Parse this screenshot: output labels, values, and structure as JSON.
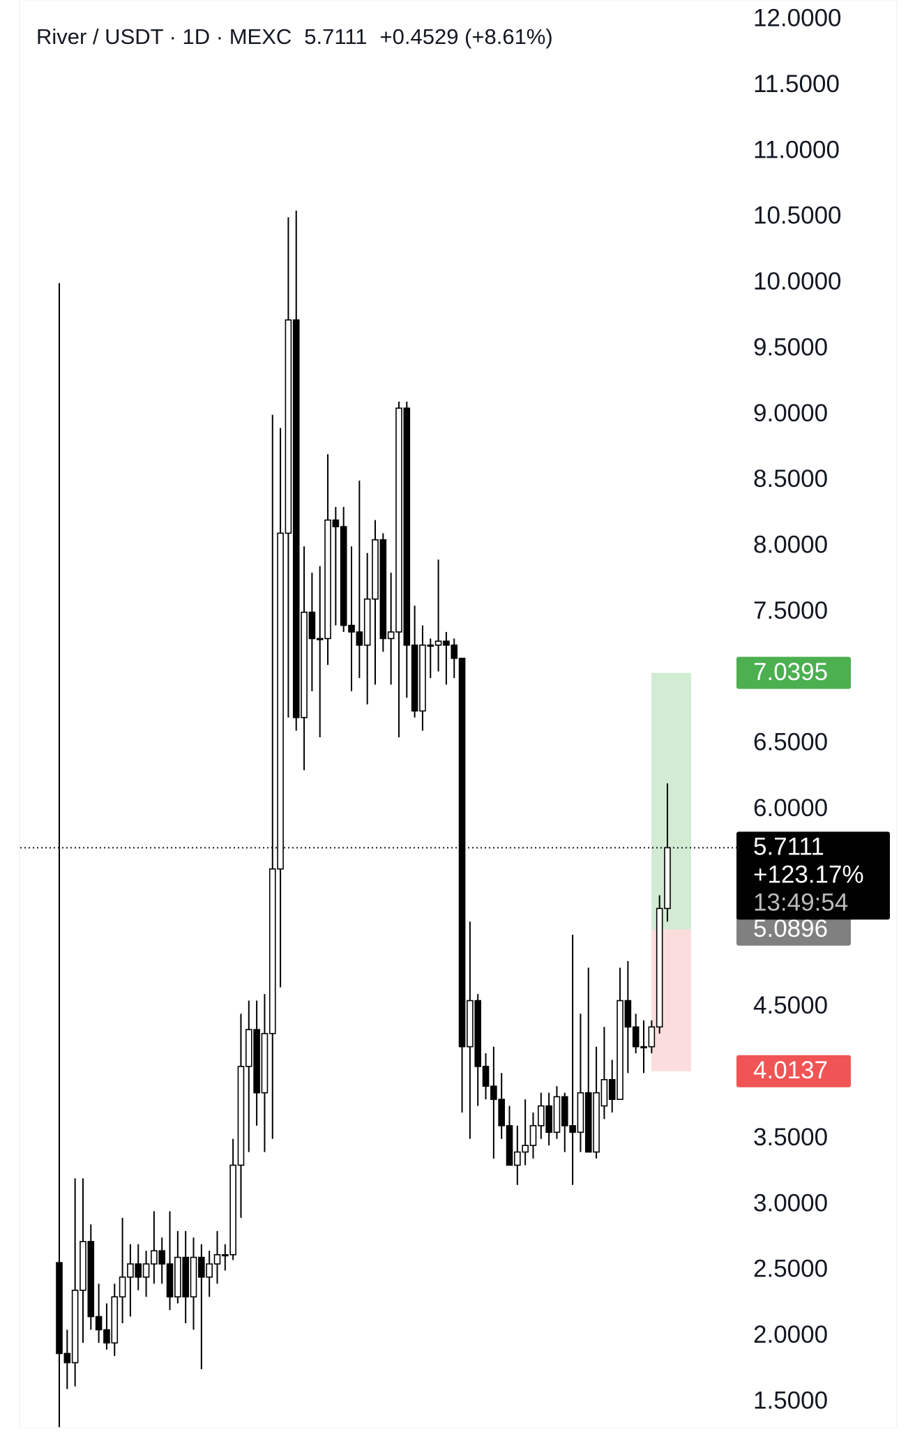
{
  "chart_data": {
    "type": "candlestick",
    "symbol": "River / USDT · 1D · MEXC",
    "change": "+0.4529 (+8.61%)",
    "last_price": 5.7111,
    "last_change_pct": "+123.17%",
    "countdown": "13:49:54",
    "up_color": "#ffffff",
    "down_color": "#000000",
    "ylim": [
      1.3,
      12.15
    ],
    "yticks": [
      {
        "value": 1.5,
        "label": "1.5000"
      },
      {
        "value": 2,
        "label": "2.0000"
      },
      {
        "value": 2.5,
        "label": "2.5000"
      },
      {
        "value": 3,
        "label": "3.0000"
      },
      {
        "value": 3.5,
        "label": "3.5000"
      },
      {
        "value": 4.5,
        "label": "4.5000"
      },
      {
        "value": 6,
        "label": "6.0000"
      },
      {
        "value": 6.5,
        "label": "6.5000"
      },
      {
        "value": 7.5,
        "label": "7.5000"
      },
      {
        "value": 8,
        "label": "8.0000"
      },
      {
        "value": 8.5,
        "label": "8.5000"
      },
      {
        "value": 9,
        "label": "9.0000"
      },
      {
        "value": 9.5,
        "label": "9.5000"
      },
      {
        "value": 10,
        "label": "10.0000"
      },
      {
        "value": 10.5,
        "label": "10.5000"
      },
      {
        "value": 11,
        "label": "11.0000"
      },
      {
        "value": 11.5,
        "label": "11.5000"
      },
      {
        "value": 12,
        "label": "12.0000"
      }
    ],
    "open": [
      2.56,
      1.87,
      1.8,
      2.35,
      2.72,
      2.15,
      2.05,
      1.95,
      2.3,
      2.45,
      2.55,
      2.45,
      2.55,
      2.65,
      2.55,
      2.3,
      2.6,
      2.3,
      2.6,
      2.45,
      2.55,
      2.62,
      2.62,
      3.3,
      4.05,
      4.33,
      3.85,
      4.3,
      5.55,
      8.1,
      9.72,
      6.7,
      7.5,
      7.3,
      7.3,
      8.2,
      8.15,
      7.4,
      7.35,
      7.25,
      7.6,
      8.05,
      7.3,
      7.35,
      9.05,
      7.25,
      6.75,
      7.25,
      7.25,
      7.28,
      7.25,
      7.15,
      4.2,
      4.55,
      4.05,
      3.9,
      3.8,
      3.6,
      3.3,
      3.4,
      3.45,
      3.6,
      3.75,
      3.55,
      3.82,
      3.6,
      3.55,
      3.85,
      3.4,
      3.75,
      3.95,
      3.8,
      4.55,
      4.35,
      4.2,
      4.2,
      4.35,
      5.25
    ],
    "high": [
      10.0,
      2.05,
      3.2,
      3.2,
      2.85,
      2.4,
      2.25,
      2.4,
      2.9,
      2.7,
      2.7,
      2.65,
      2.95,
      2.75,
      2.95,
      2.8,
      2.8,
      2.75,
      2.7,
      2.65,
      2.8,
      2.7,
      3.5,
      4.45,
      4.55,
      4.55,
      4.6,
      9.0,
      8.9,
      10.5,
      10.55,
      8.0,
      7.8,
      7.85,
      8.7,
      8.3,
      8.3,
      8.0,
      8.5,
      7.95,
      8.2,
      8.1,
      7.8,
      9.1,
      9.1,
      7.55,
      7.4,
      7.3,
      7.9,
      7.35,
      7.3,
      7.15,
      5.15,
      4.6,
      4.15,
      4.2,
      4.0,
      3.75,
      3.6,
      3.8,
      3.7,
      3.85,
      3.85,
      3.9,
      3.85,
      5.05,
      4.45,
      4.8,
      4.2,
      4.35,
      4.1,
      4.8,
      4.85,
      4.45,
      4.4,
      4.4,
      5.35,
      6.2
    ],
    "low": [
      1.31,
      1.6,
      1.62,
      1.95,
      2.05,
      1.95,
      1.9,
      1.85,
      2.1,
      2.15,
      2.35,
      2.3,
      2.4,
      2.4,
      2.2,
      2.25,
      2.1,
      2.05,
      1.75,
      2.3,
      2.4,
      2.5,
      2.58,
      2.9,
      3.4,
      3.6,
      3.4,
      3.5,
      4.65,
      6.7,
      6.6,
      6.3,
      6.9,
      6.55,
      7.1,
      7.4,
      7.35,
      6.9,
      7.0,
      6.8,
      6.95,
      7.2,
      6.95,
      6.55,
      6.85,
      6.7,
      6.6,
      7.0,
      7.05,
      6.95,
      7.0,
      3.7,
      3.5,
      3.75,
      3.8,
      3.35,
      3.5,
      3.3,
      3.15,
      3.3,
      3.35,
      3.5,
      3.45,
      3.5,
      3.4,
      3.15,
      3.4,
      3.4,
      3.35,
      3.65,
      3.7,
      3.8,
      4.0,
      4.15,
      4.0,
      4.15,
      4.3,
      5.15
    ],
    "close": [
      1.87,
      1.8,
      2.35,
      2.72,
      2.15,
      2.05,
      1.95,
      2.3,
      2.45,
      2.55,
      2.45,
      2.55,
      2.65,
      2.55,
      2.3,
      2.6,
      2.3,
      2.6,
      2.45,
      2.55,
      2.62,
      2.62,
      3.3,
      4.05,
      4.33,
      3.85,
      4.3,
      5.55,
      8.1,
      9.72,
      6.7,
      7.5,
      7.3,
      7.3,
      8.2,
      8.15,
      7.4,
      7.35,
      7.25,
      7.6,
      8.05,
      7.3,
      7.35,
      9.05,
      7.25,
      6.75,
      7.25,
      7.25,
      7.28,
      7.25,
      7.15,
      4.2,
      4.55,
      4.05,
      3.9,
      3.8,
      3.6,
      3.3,
      3.4,
      3.45,
      3.6,
      3.75,
      3.55,
      3.82,
      3.6,
      3.55,
      3.85,
      3.4,
      3.85,
      3.95,
      3.8,
      4.55,
      4.35,
      4.2,
      4.2,
      4.35,
      5.25,
      5.7111
    ],
    "position": {
      "target": 7.0395,
      "entry": 5.0896,
      "stop": 4.0137,
      "profit_color": "#4caf50",
      "loss_color": "#f05454",
      "entry_color": "#808080"
    }
  }
}
